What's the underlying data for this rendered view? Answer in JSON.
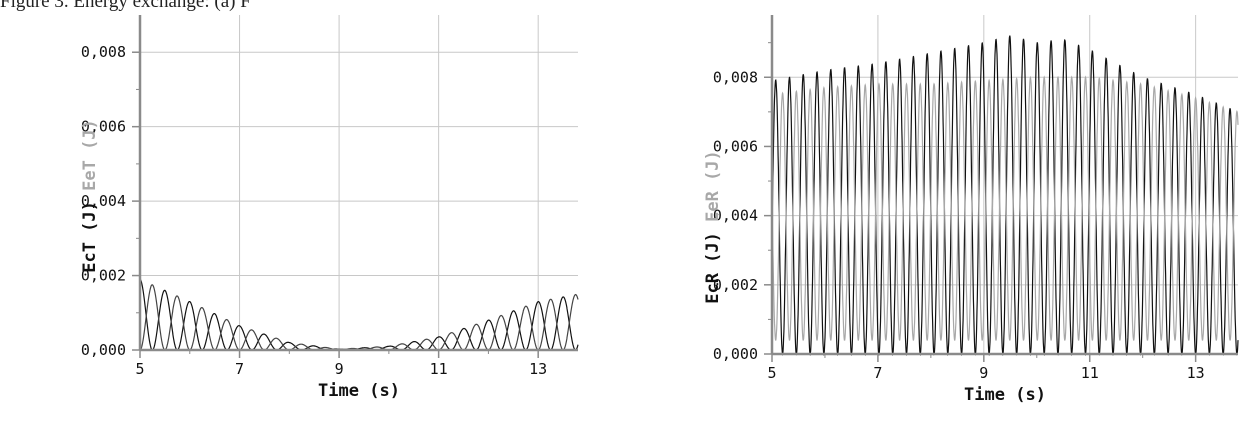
{
  "caption": "Figure 3. Energy exchange: (a) F",
  "chart_data": [
    {
      "type": "line",
      "title": "",
      "xlabel": "Time (s)",
      "ylabel_parts": [
        {
          "text": "EcT (J)",
          "color": "#111111"
        },
        {
          "text": "EeT (J)",
          "color": "#a8a8a8"
        }
      ],
      "xlim": [
        5,
        13.8
      ],
      "ylim": [
        0,
        0.009
      ],
      "xticks": [
        5,
        7,
        9,
        11,
        13
      ],
      "yticks": [
        0,
        0.002,
        0.004,
        0.006,
        0.008
      ],
      "ytick_labels": [
        "0,000",
        "0,002",
        "0,004",
        "0,006",
        "0,008"
      ],
      "grid": true,
      "series": [
        {
          "color": "#111111",
          "period_s": 0.5,
          "phase_s": 0,
          "peaks": {
            "x": [
              5,
              6,
              7,
              8,
              9,
              10,
              11,
              12,
              13,
              13.8
            ],
            "y": [
              0.0019,
              0.0013,
              0.00065,
              0.0002,
              2e-05,
              0.0001,
              0.00035,
              0.0008,
              0.0013,
              0.0015
            ]
          }
        },
        {
          "color": "#444444",
          "period_s": 0.5,
          "phase_s": 0.25,
          "peaks": {
            "x": [
              5,
              6,
              7,
              8,
              9,
              10,
              11,
              12,
              13,
              13.8
            ],
            "y": [
              0.0019,
              0.0013,
              0.00065,
              0.0002,
              2e-05,
              0.0001,
              0.00035,
              0.0008,
              0.0013,
              0.0015
            ]
          }
        }
      ]
    },
    {
      "type": "line",
      "title": "",
      "xlabel": "Time (s)",
      "ylabel_parts": [
        {
          "text": "EcR (J)",
          "color": "#111111"
        },
        {
          "text": "EeR (J)",
          "color": "#a8a8a8"
        }
      ],
      "xlim": [
        5,
        13.8
      ],
      "ylim": [
        0,
        0.0098
      ],
      "xticks": [
        5,
        7,
        9,
        11,
        13
      ],
      "yticks": [
        0,
        0.002,
        0.004,
        0.006,
        0.008
      ],
      "ytick_labels": [
        "0,000",
        "0,002",
        "0,004",
        "0,006",
        "0,008"
      ],
      "grid": true,
      "series": [
        {
          "color": "#111111",
          "period_s": 0.26,
          "phase_s": 0.07,
          "peaks": {
            "x": [
              5,
              6,
              7,
              8,
              9,
              9.5,
              10,
              10.5,
              11,
              12,
              13,
              13.8
            ],
            "y": [
              0.0079,
              0.0082,
              0.0084,
              0.0087,
              0.009,
              0.0092,
              0.009,
              0.0091,
              0.0088,
              0.008,
              0.0075,
              0.007
            ]
          },
          "troughs": {
            "x": [
              5,
              13.8
            ],
            "y": [
              0,
              0
            ]
          }
        },
        {
          "color": "#a8a8a8",
          "period_s": 0.26,
          "phase_s": 0.2,
          "peaks": {
            "x": [
              5,
              6,
              7,
              8,
              9,
              10,
              11,
              12,
              13,
              13.8
            ],
            "y": [
              0.0075,
              0.0077,
              0.0078,
              0.0078,
              0.0079,
              0.008,
              0.008,
              0.0078,
              0.0074,
              0.007
            ]
          },
          "troughs": {
            "x": [
              5,
              13.8
            ],
            "y": [
              0.0004,
              0.0004
            ]
          }
        }
      ]
    }
  ]
}
